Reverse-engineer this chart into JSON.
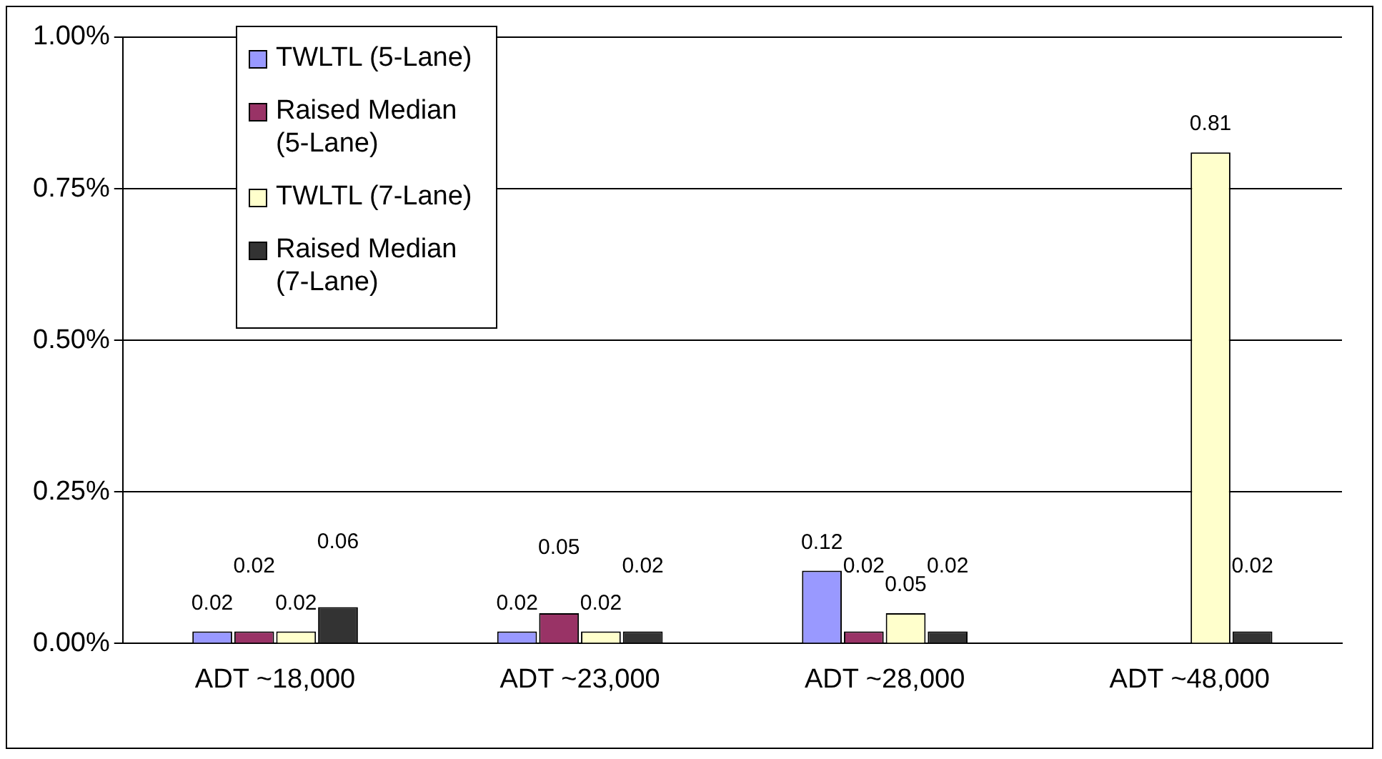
{
  "chart_data": {
    "type": "bar",
    "categories": [
      "ADT ~18,000",
      "ADT ~23,000",
      "ADT ~28,000",
      "ADT ~48,000"
    ],
    "series": [
      {
        "name": "TWLTL (5-Lane)",
        "color": "#9999ff",
        "values": [
          0.02,
          0.02,
          0.12,
          null
        ]
      },
      {
        "name": "Raised Median (5-Lane)",
        "color": "#993366",
        "values": [
          0.02,
          0.05,
          0.02,
          null
        ]
      },
      {
        "name": "TWLTL (7-Lane)",
        "color": "#ffffcc",
        "values": [
          0.02,
          0.02,
          0.05,
          0.81
        ]
      },
      {
        "name": "Raised Median (7-Lane)",
        "color": "#333333",
        "values": [
          0.06,
          0.02,
          0.02,
          0.02
        ]
      }
    ],
    "ylim": [
      0,
      1
    ],
    "yticks": [
      {
        "value": 0,
        "label": "0.00%"
      },
      {
        "value": 0.25,
        "label": "0.25%"
      },
      {
        "value": 0.5,
        "label": "0.50%"
      },
      {
        "value": 0.75,
        "label": "0.75%"
      },
      {
        "value": 1,
        "label": "1.00%"
      }
    ],
    "grid": "y",
    "legend": "top left",
    "data_labels": true
  }
}
